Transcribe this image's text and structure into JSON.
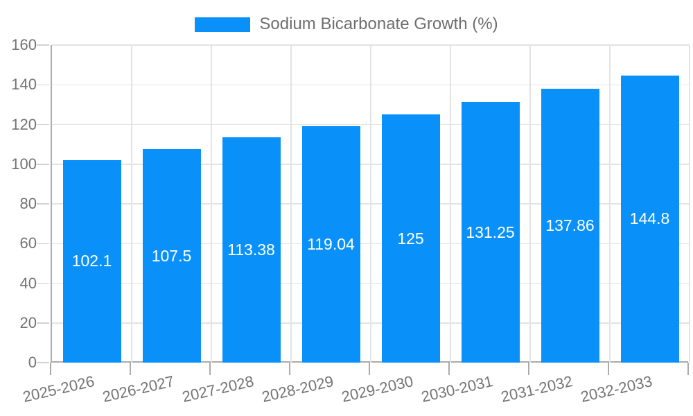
{
  "legend": {
    "label": "Sodium Bicarbonate Growth (%)"
  },
  "chart_data": {
    "type": "bar",
    "title": "Sodium Bicarbonate Growth (%)",
    "categories": [
      "2025-2026",
      "2026-2027",
      "2027-2028",
      "2028-2029",
      "2029-2030",
      "2030-2031",
      "2031-2032",
      "2032-2033"
    ],
    "values": [
      102.1,
      107.5,
      113.38,
      119.04,
      125,
      131.25,
      137.86,
      144.8
    ],
    "value_labels": [
      "102.1",
      "107.5",
      "113.38",
      "119.04",
      "125",
      "131.25",
      "137.86",
      "144.8"
    ],
    "xlabel": "",
    "ylabel": "",
    "ylim": [
      0,
      160
    ],
    "yticks": [
      0,
      20,
      40,
      60,
      80,
      100,
      120,
      140,
      160
    ],
    "grid": true,
    "legend_position": "top",
    "bar_color": "#0a91f9",
    "value_label_color": "#ffffff"
  },
  "colors": {
    "background": "#ffffff",
    "grid": "#e3e3e3",
    "axis": "#ababab",
    "tick_text": "#737373",
    "legend_text": "#6e6e6e"
  }
}
